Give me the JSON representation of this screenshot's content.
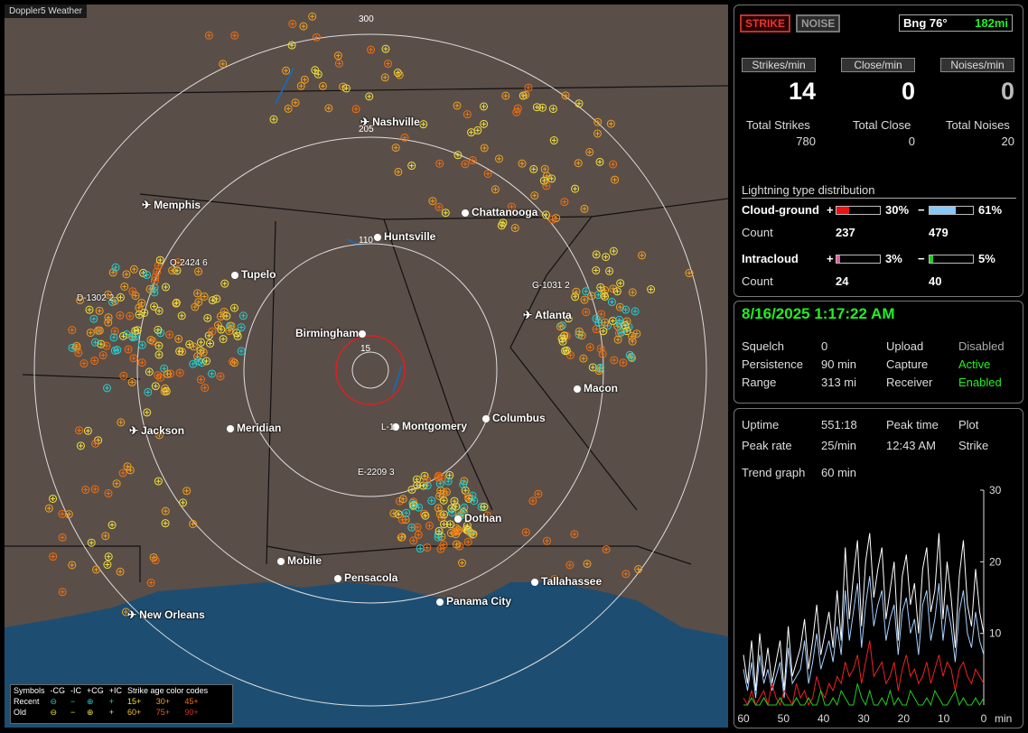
{
  "app_title": "Doppler5 Weather",
  "map": {
    "range_labels": [
      "300",
      "205",
      "110",
      "15"
    ],
    "cities": [
      {
        "name": "Nashville",
        "icon": "airport-icon"
      },
      {
        "name": "Memphis",
        "icon": "airport-icon"
      },
      {
        "name": "Chattanooga",
        "icon": "city-dot"
      },
      {
        "name": "Huntsville",
        "icon": "city-dot"
      },
      {
        "name": "Tupelo",
        "icon": "city-dot"
      },
      {
        "name": "Atlanta",
        "icon": "airport-icon"
      },
      {
        "name": "Birmingham",
        "icon": "city-dot"
      },
      {
        "name": "Macon",
        "icon": "city-dot"
      },
      {
        "name": "Jackson",
        "icon": "airport-icon"
      },
      {
        "name": "Meridian",
        "icon": "city-dot"
      },
      {
        "name": "Montgomery",
        "icon": "city-dot"
      },
      {
        "name": "Columbus",
        "icon": "city-dot"
      },
      {
        "name": "Dothan",
        "icon": "city-dot"
      },
      {
        "name": "Mobile",
        "icon": "city-dot"
      },
      {
        "name": "Pensacola",
        "icon": "city-dot"
      },
      {
        "name": "Tallahassee",
        "icon": "city-dot"
      },
      {
        "name": "Panama City",
        "icon": "city-dot"
      },
      {
        "name": "New Orleans",
        "icon": "airport-icon"
      }
    ],
    "storm_labels": [
      "Q-2424 6",
      "D-1302 2",
      "G-1031 2",
      "E-2209 3",
      "L-1"
    ],
    "legend": {
      "symbols_label": "Symbols",
      "headers": [
        "-CG",
        "-IC",
        "+CG",
        "+IC"
      ],
      "age_title": "Strike age color codes",
      "rows": [
        {
          "label": "Recent",
          "glyphs": [
            "⊖",
            "−",
            "⊕",
            "+"
          ],
          "ages": [
            "15+",
            "30+",
            "45+"
          ]
        },
        {
          "label": "Old",
          "glyphs": [
            "⊖",
            "−",
            "⊕",
            "+"
          ],
          "ages": [
            "60+",
            "75+",
            "90+"
          ]
        }
      ],
      "colors": {
        "recent": "#24d0d0",
        "old": "#f0e040",
        "a15": "#f0e040",
        "a30": "#f0a020",
        "a45": "#f07010",
        "a60": "#f0c030",
        "a75": "#e06020",
        "a90": "#d03020"
      }
    }
  },
  "status": {
    "strike_button": "STRIKE",
    "noise_button": "NOISE",
    "bearing": "Bng 76°",
    "distance": "182mi",
    "rate_headers": [
      "Strikes/min",
      "Close/min",
      "Noises/min"
    ],
    "rates": [
      "14",
      "0",
      "0"
    ],
    "total_labels": [
      "Total Strikes",
      "Total Close",
      "Total Noises"
    ],
    "totals": [
      "780",
      "0",
      "20"
    ],
    "dist_title": "Lightning type distribution",
    "cloud_ground_label": "Cloud-ground",
    "intracloud_label": "Intracloud",
    "count_label": "Count",
    "plus": "+",
    "minus": "−",
    "cg_pos_pct": "30%",
    "cg_neg_pct": "61%",
    "cg_pos_count": "237",
    "cg_neg_count": "479",
    "ic_pos_pct": "3%",
    "ic_neg_pct": "5%",
    "ic_pos_count": "24",
    "ic_neg_count": "40",
    "bar_fill": {
      "cg_pos": 0.3,
      "cg_neg": 0.61,
      "ic_pos": 0.03,
      "ic_neg": 0.05
    },
    "bar_colors": {
      "cg_pos": "#ee1111",
      "cg_neg": "#88c8f8",
      "ic_pos": "#e060a0",
      "ic_neg": "#22cc22"
    }
  },
  "settings": {
    "datetime": "8/16/2025 1:17:22 AM",
    "rows": [
      {
        "k1": "Squelch",
        "v1": "0",
        "k2": "Upload",
        "v2": "Disabled"
      },
      {
        "k1": "Persistence",
        "v1": "90 min",
        "k2": "Capture",
        "v2": "Active"
      },
      {
        "k1": "Range",
        "v1": "313 mi",
        "k2": "Receiver",
        "v2": "Enabled"
      }
    ]
  },
  "stats": {
    "uptime_label": "Uptime",
    "uptime": "551:18",
    "peak_time_label": "Peak time",
    "plot_label": "Plot",
    "peak_rate_label": "Peak rate",
    "peak_rate": "25/min",
    "peak_time": "12:43 AM",
    "plot": "Strike",
    "trend_label": "Trend graph",
    "trend_value": "60 min"
  },
  "chart_data": {
    "type": "line",
    "x_ticks": [
      "60",
      "50",
      "40",
      "30",
      "20",
      "10",
      "0"
    ],
    "x_unit": "min",
    "y_ticks": [
      "30",
      "20",
      "10"
    ],
    "ylim": [
      0,
      30
    ],
    "xlim": [
      60,
      0
    ],
    "series": [
      {
        "color": "#ffffff",
        "values": [
          7,
          3,
          9,
          2,
          10,
          4,
          8,
          3,
          6,
          9,
          2,
          11,
          4,
          6,
          8,
          12,
          5,
          9,
          14,
          7,
          10,
          13,
          8,
          16,
          9,
          22,
          12,
          18,
          23,
          11,
          20,
          24,
          15,
          19,
          22,
          12,
          16,
          20,
          9,
          18,
          21,
          14,
          17,
          10,
          19,
          22,
          13,
          16,
          24,
          12,
          20,
          15,
          8,
          18,
          23,
          14,
          11,
          19,
          13,
          10
        ]
      },
      {
        "color": "#a8d0ff",
        "values": [
          5,
          2,
          6,
          1,
          7,
          3,
          5,
          2,
          4,
          6,
          1,
          8,
          3,
          4,
          5,
          9,
          3,
          6,
          10,
          5,
          7,
          9,
          6,
          11,
          7,
          16,
          9,
          13,
          17,
          8,
          14,
          18,
          11,
          14,
          16,
          9,
          12,
          14,
          7,
          13,
          15,
          10,
          12,
          7,
          14,
          16,
          9,
          12,
          17,
          9,
          14,
          11,
          6,
          13,
          16,
          10,
          8,
          13,
          9,
          7
        ]
      },
      {
        "color": "#ee2222",
        "values": [
          1,
          0,
          2,
          0,
          1,
          2,
          0,
          3,
          1,
          0,
          2,
          1,
          0,
          3,
          1,
          2,
          0,
          1,
          4,
          2,
          1,
          3,
          2,
          4,
          3,
          6,
          4,
          5,
          7,
          3,
          6,
          9,
          4,
          5,
          6,
          3,
          4,
          6,
          2,
          5,
          7,
          4,
          5,
          3,
          4,
          6,
          3,
          5,
          7,
          4,
          6,
          5,
          2,
          5,
          6,
          4,
          3,
          5,
          4,
          3
        ]
      },
      {
        "color": "#22cc22",
        "values": [
          0,
          0,
          1,
          0,
          0,
          1,
          0,
          0,
          0,
          1,
          0,
          0,
          0,
          1,
          0,
          0,
          1,
          0,
          0,
          2,
          0,
          0,
          1,
          0,
          2,
          1,
          0,
          0,
          3,
          1,
          0,
          2,
          0,
          0,
          1,
          0,
          2,
          0,
          1,
          0,
          0,
          2,
          1,
          0,
          0,
          1,
          0,
          2,
          1,
          0,
          0,
          1,
          2,
          0,
          1,
          0,
          0,
          1,
          0,
          1
        ]
      }
    ]
  }
}
